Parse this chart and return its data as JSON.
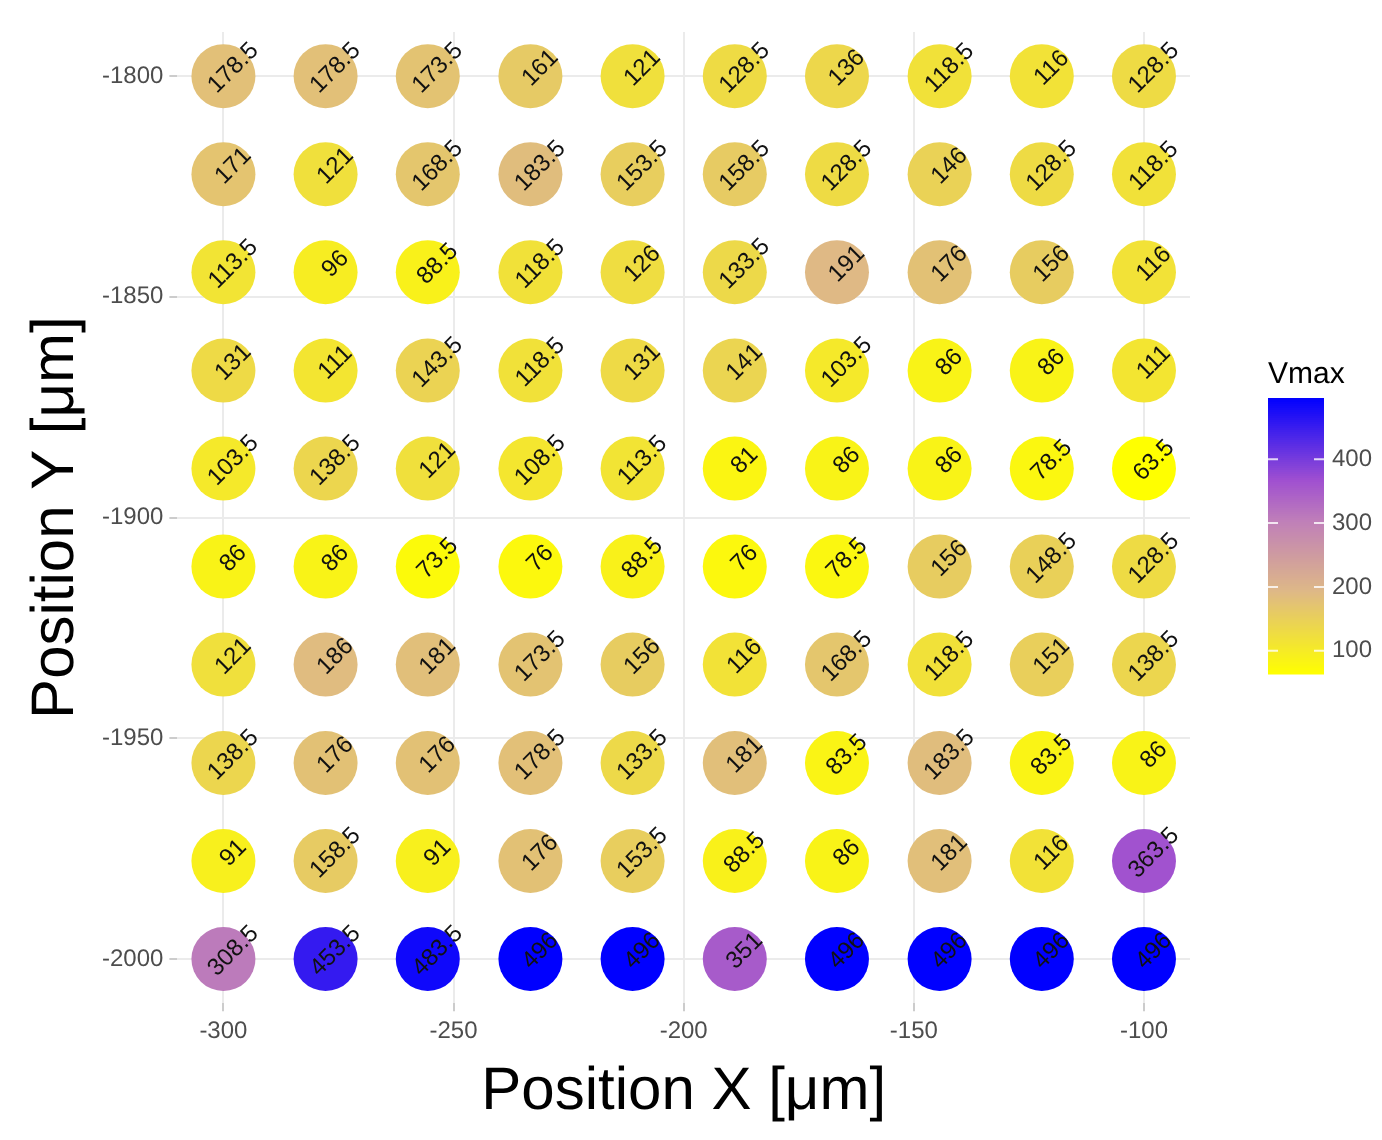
{
  "chart_data": {
    "type": "scatter",
    "xlabel": "Position X [μm]",
    "ylabel": "Position Y [μm]",
    "clabel": "Vmax",
    "xlim": [
      -310,
      -90
    ],
    "xticks": [
      -300,
      -250,
      -200,
      -150,
      -100
    ],
    "ylim": [
      -2010,
      -1790
    ],
    "yticks": [
      -2000,
      -1950,
      -1900,
      -1850,
      -1800
    ],
    "clim": [
      63.5,
      496
    ],
    "cticks": [
      100,
      200,
      300,
      400
    ],
    "grid": true,
    "legend": false,
    "marker": "circle",
    "series": [
      {
        "x": [
          -300,
          -277.8,
          -255.6,
          -233.3,
          -211.1,
          -188.9,
          -166.7,
          -144.4,
          -122.2,
          -100
        ],
        "values": [
          -1800,
          -1800,
          -1800,
          -1800,
          -1800,
          -1800,
          -1800,
          -1800,
          -1800,
          -1800
        ],
        "colors": [
          "#e2c078",
          "#e2c078",
          "#e3c372",
          "#e6ca65",
          "#f0e03c",
          "#eedb44",
          "#edd74b",
          "#f1e139",
          "#f2e237",
          "#eedb44"
        ]
      },
      {
        "x": [
          -300,
          -277.8,
          -255.6,
          -233.3,
          -211.1,
          -188.9,
          -166.7,
          -144.4,
          -122.2,
          -100
        ],
        "values": [
          -1822.2,
          -1822.2,
          -1822.2,
          -1822.2,
          -1822.2,
          -1822.2,
          -1822.2,
          -1822.2,
          -1822.2,
          -1822.2
        ],
        "colors": [
          "#e4c470",
          "#f0e03c",
          "#e4c66d",
          "#e0bd7d",
          "#e8ce5e",
          "#e7cb63",
          "#eedb44",
          "#ead256",
          "#eedb44",
          "#f1e139"
        ]
      },
      {
        "x": [
          -300,
          -277.8,
          -255.6,
          -233.3,
          -211.1,
          -188.9,
          -166.7,
          -144.4,
          -122.2,
          -100
        ],
        "values": [
          -1844.4,
          -1844.4,
          -1844.4,
          -1844.4,
          -1844.4,
          -1844.4,
          -1844.4,
          -1844.4,
          -1844.4,
          -1844.4
        ],
        "colors": [
          "#f2e434",
          "#f7ed22",
          "#f9f11a",
          "#f1e139",
          "#efdd41",
          "#edd949",
          "#dfb985",
          "#e2c175",
          "#e7cc60",
          "#f2e237"
        ]
      },
      {
        "x": [
          -300,
          -277.8,
          -255.6,
          -233.3,
          -211.1,
          -188.9,
          -166.7,
          -144.4,
          -122.2,
          -100
        ],
        "values": [
          -1866.7,
          -1866.7,
          -1866.7,
          -1866.7,
          -1866.7,
          -1866.7,
          -1866.7,
          -1866.7,
          -1866.7,
          -1866.7
        ],
        "colors": [
          "#eeda46",
          "#f3e531",
          "#ebd353",
          "#f1e139",
          "#eeda46",
          "#ebd551",
          "#f5e92a",
          "#f9f317",
          "#f9f317",
          "#f3e531"
        ]
      },
      {
        "x": [
          -300,
          -277.8,
          -255.6,
          -233.3,
          -211.1,
          -188.9,
          -166.7,
          -144.4,
          -122.2,
          -100
        ],
        "values": [
          -1888.9,
          -1888.9,
          -1888.9,
          -1888.9,
          -1888.9,
          -1888.9,
          -1888.9,
          -1888.9,
          -1888.9,
          -1888.9
        ],
        "colors": [
          "#f5e92a",
          "#ecd64e",
          "#f0e03c",
          "#f4e62f",
          "#f2e434",
          "#fbf512",
          "#f9f317",
          "#f9f317",
          "#fbf710",
          "#ffff00"
        ]
      },
      {
        "x": [
          -300,
          -277.8,
          -255.6,
          -233.3,
          -211.1,
          -188.9,
          -166.7,
          -144.4,
          -122.2,
          -100
        ],
        "values": [
          -1911.1,
          -1911.1,
          -1911.1,
          -1911.1,
          -1911.1,
          -1911.1,
          -1911.1,
          -1911.1,
          -1911.1,
          -1911.1
        ],
        "colors": [
          "#f9f317",
          "#f9f317",
          "#fcfa0a",
          "#fcf80d",
          "#f9f11a",
          "#fcf80d",
          "#fbf710",
          "#e7cc60",
          "#e9d058",
          "#eedb44"
        ]
      },
      {
        "x": [
          -300,
          -277.8,
          -255.6,
          -233.3,
          -211.1,
          -188.9,
          -166.7,
          -144.4,
          -122.2,
          -100
        ],
        "values": [
          -1933.3,
          -1933.3,
          -1933.3,
          -1933.3,
          -1933.3,
          -1933.3,
          -1933.3,
          -1933.3,
          -1933.3,
          -1933.3
        ],
        "colors": [
          "#f0e03c",
          "#e0bc80",
          "#e1bf7a",
          "#e3c372",
          "#e7cc60",
          "#f2e237",
          "#e4c66d",
          "#f1e139",
          "#e9cf5b",
          "#ecd64e"
        ]
      },
      {
        "x": [
          -300,
          -277.8,
          -255.6,
          -233.3,
          -211.1,
          -188.9,
          -166.7,
          -144.4,
          -122.2,
          -100
        ],
        "values": [
          -1955.6,
          -1955.6,
          -1955.6,
          -1955.6,
          -1955.6,
          -1955.6,
          -1955.6,
          -1955.6,
          -1955.6,
          -1955.6
        ],
        "colors": [
          "#ecd64e",
          "#e2c175",
          "#e2c175",
          "#e2c078",
          "#edd949",
          "#e1bf7a",
          "#faf415",
          "#e0bd7d",
          "#faf415",
          "#f9f317"
        ]
      },
      {
        "x": [
          -300,
          -277.8,
          -255.6,
          -233.3,
          -211.1,
          -188.9,
          -166.7,
          -144.4,
          -122.2,
          -100
        ],
        "values": [
          -1977.8,
          -1977.8,
          -1977.8,
          -1977.8,
          -1977.8,
          -1977.8,
          -1977.8,
          -1977.8,
          -1977.8,
          -1977.8
        ],
        "colors": [
          "#f8f01d",
          "#e7cb63",
          "#f8f01d",
          "#e2c175",
          "#e8ce5e",
          "#f9f11a",
          "#f9f317",
          "#e1bf7a",
          "#f2e237",
          "#a152cf"
        ]
      },
      {
        "x": [
          -300,
          -277.8,
          -255.6,
          -233.3,
          -211.1,
          -188.9,
          -166.7,
          -144.4,
          -122.2,
          -100
        ],
        "values": [
          -2000,
          -2000,
          -2000,
          -2000,
          -2000,
          -2000,
          -2000,
          -2000,
          -2000,
          -2000
        ],
        "colors": [
          "#bc7bbb",
          "#341af0",
          "#0f08fb",
          "#0000ff",
          "#0000ff",
          "#a75bca",
          "#0000ff",
          "#0000ff",
          "#0000ff",
          "#0000ff"
        ]
      }
    ],
    "annotations": [
      {
        "text": "178.5",
        "x": -300,
        "y": -1800
      },
      {
        "text": "178.5",
        "x": -277.8,
        "y": -1800
      },
      {
        "text": "173.5",
        "x": -255.6,
        "y": -1800
      },
      {
        "text": "161",
        "x": -233.3,
        "y": -1800
      },
      {
        "text": "121",
        "x": -211.1,
        "y": -1800
      },
      {
        "text": "128.5",
        "x": -188.9,
        "y": -1800
      },
      {
        "text": "136",
        "x": -166.7,
        "y": -1800
      },
      {
        "text": "118.5",
        "x": -144.4,
        "y": -1800
      },
      {
        "text": "116",
        "x": -122.2,
        "y": -1800
      },
      {
        "text": "128.5",
        "x": -100,
        "y": -1800
      },
      {
        "text": "171",
        "x": -300,
        "y": -1822.2
      },
      {
        "text": "121",
        "x": -277.8,
        "y": -1822.2
      },
      {
        "text": "168.5",
        "x": -255.6,
        "y": -1822.2
      },
      {
        "text": "183.5",
        "x": -233.3,
        "y": -1822.2
      },
      {
        "text": "153.5",
        "x": -211.1,
        "y": -1822.2
      },
      {
        "text": "158.5",
        "x": -188.9,
        "y": -1822.2
      },
      {
        "text": "128.5",
        "x": -166.7,
        "y": -1822.2
      },
      {
        "text": "146",
        "x": -144.4,
        "y": -1822.2
      },
      {
        "text": "128.5",
        "x": -122.2,
        "y": -1822.2
      },
      {
        "text": "118.5",
        "x": -100,
        "y": -1822.2
      },
      {
        "text": "113.5",
        "x": -300,
        "y": -1844.4
      },
      {
        "text": "96",
        "x": -277.8,
        "y": -1844.4
      },
      {
        "text": "88.5",
        "x": -255.6,
        "y": -1844.4
      },
      {
        "text": "118.5",
        "x": -233.3,
        "y": -1844.4
      },
      {
        "text": "126",
        "x": -211.1,
        "y": -1844.4
      },
      {
        "text": "133.5",
        "x": -188.9,
        "y": -1844.4
      },
      {
        "text": "191",
        "x": -166.7,
        "y": -1844.4
      },
      {
        "text": "176",
        "x": -144.4,
        "y": -1844.4
      },
      {
        "text": "156",
        "x": -122.2,
        "y": -1844.4
      },
      {
        "text": "116",
        "x": -100,
        "y": -1844.4
      },
      {
        "text": "131",
        "x": -300,
        "y": -1866.7
      },
      {
        "text": "111",
        "x": -277.8,
        "y": -1866.7
      },
      {
        "text": "143.5",
        "x": -255.6,
        "y": -1866.7
      },
      {
        "text": "118.5",
        "x": -233.3,
        "y": -1866.7
      },
      {
        "text": "131",
        "x": -211.1,
        "y": -1866.7
      },
      {
        "text": "141",
        "x": -188.9,
        "y": -1866.7
      },
      {
        "text": "103.5",
        "x": -166.7,
        "y": -1866.7
      },
      {
        "text": "86",
        "x": -144.4,
        "y": -1866.7
      },
      {
        "text": "86",
        "x": -122.2,
        "y": -1866.7
      },
      {
        "text": "111",
        "x": -100,
        "y": -1866.7
      },
      {
        "text": "103.5",
        "x": -300,
        "y": -1888.9
      },
      {
        "text": "138.5",
        "x": -277.8,
        "y": -1888.9
      },
      {
        "text": "121",
        "x": -255.6,
        "y": -1888.9
      },
      {
        "text": "108.5",
        "x": -233.3,
        "y": -1888.9
      },
      {
        "text": "113.5",
        "x": -211.1,
        "y": -1888.9
      },
      {
        "text": "81",
        "x": -188.9,
        "y": -1888.9
      },
      {
        "text": "86",
        "x": -166.7,
        "y": -1888.9
      },
      {
        "text": "86",
        "x": -144.4,
        "y": -1888.9
      },
      {
        "text": "78.5",
        "x": -122.2,
        "y": -1888.9
      },
      {
        "text": "63.5",
        "x": -100,
        "y": -1888.9
      },
      {
        "text": "86",
        "x": -300,
        "y": -1911.1
      },
      {
        "text": "86",
        "x": -277.8,
        "y": -1911.1
      },
      {
        "text": "73.5",
        "x": -255.6,
        "y": -1911.1
      },
      {
        "text": "76",
        "x": -233.3,
        "y": -1911.1
      },
      {
        "text": "88.5",
        "x": -211.1,
        "y": -1911.1
      },
      {
        "text": "76",
        "x": -188.9,
        "y": -1911.1
      },
      {
        "text": "78.5",
        "x": -166.7,
        "y": -1911.1
      },
      {
        "text": "156",
        "x": -144.4,
        "y": -1911.1
      },
      {
        "text": "148.5",
        "x": -122.2,
        "y": -1911.1
      },
      {
        "text": "128.5",
        "x": -100,
        "y": -1911.1
      },
      {
        "text": "121",
        "x": -300,
        "y": -1933.3
      },
      {
        "text": "186",
        "x": -277.8,
        "y": -1933.3
      },
      {
        "text": "181",
        "x": -255.6,
        "y": -1933.3
      },
      {
        "text": "173.5",
        "x": -233.3,
        "y": -1933.3
      },
      {
        "text": "156",
        "x": -211.1,
        "y": -1933.3
      },
      {
        "text": "116",
        "x": -188.9,
        "y": -1933.3
      },
      {
        "text": "168.5",
        "x": -166.7,
        "y": -1933.3
      },
      {
        "text": "118.5",
        "x": -144.4,
        "y": -1933.3
      },
      {
        "text": "151",
        "x": -122.2,
        "y": -1933.3
      },
      {
        "text": "138.5",
        "x": -100,
        "y": -1933.3
      },
      {
        "text": "138.5",
        "x": -300,
        "y": -1955.6
      },
      {
        "text": "176",
        "x": -277.8,
        "y": -1955.6
      },
      {
        "text": "176",
        "x": -255.6,
        "y": -1955.6
      },
      {
        "text": "178.5",
        "x": -233.3,
        "y": -1955.6
      },
      {
        "text": "133.5",
        "x": -211.1,
        "y": -1955.6
      },
      {
        "text": "181",
        "x": -188.9,
        "y": -1955.6
      },
      {
        "text": "83.5",
        "x": -166.7,
        "y": -1955.6
      },
      {
        "text": "183.5",
        "x": -144.4,
        "y": -1955.6
      },
      {
        "text": "83.5",
        "x": -122.2,
        "y": -1955.6
      },
      {
        "text": "86",
        "x": -100,
        "y": -1955.6
      },
      {
        "text": "91",
        "x": -300,
        "y": -1977.8
      },
      {
        "text": "158.5",
        "x": -277.8,
        "y": -1977.8
      },
      {
        "text": "91",
        "x": -255.6,
        "y": -1977.8
      },
      {
        "text": "176",
        "x": -233.3,
        "y": -1977.8
      },
      {
        "text": "153.5",
        "x": -211.1,
        "y": -1977.8
      },
      {
        "text": "88.5",
        "x": -188.9,
        "y": -1977.8
      },
      {
        "text": "86",
        "x": -166.7,
        "y": -1977.8
      },
      {
        "text": "181",
        "x": -144.4,
        "y": -1977.8
      },
      {
        "text": "116",
        "x": -122.2,
        "y": -1977.8
      },
      {
        "text": "363.5",
        "x": -100,
        "y": -1977.8
      },
      {
        "text": "308.5",
        "x": -300,
        "y": -2000
      },
      {
        "text": "453.5",
        "x": -277.8,
        "y": -2000
      },
      {
        "text": "483.5",
        "x": -255.6,
        "y": -2000
      },
      {
        "text": "496",
        "x": -233.3,
        "y": -2000
      },
      {
        "text": "496",
        "x": -211.1,
        "y": -2000
      },
      {
        "text": "351",
        "x": -188.9,
        "y": -2000
      },
      {
        "text": "496",
        "x": -166.7,
        "y": -2000
      },
      {
        "text": "496",
        "x": -144.4,
        "y": -2000
      },
      {
        "text": "496",
        "x": -122.2,
        "y": -2000
      },
      {
        "text": "496",
        "x": -100,
        "y": -2000
      }
    ]
  }
}
